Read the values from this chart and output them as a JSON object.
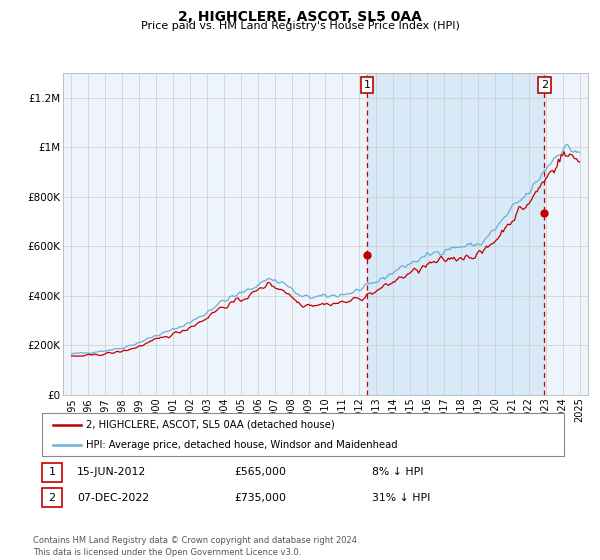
{
  "title": "2, HIGHCLERE, ASCOT, SL5 0AA",
  "subtitle": "Price paid vs. HM Land Registry's House Price Index (HPI)",
  "ylabel_ticks": [
    "£0",
    "£200K",
    "£400K",
    "£600K",
    "£800K",
    "£1M",
    "£1.2M"
  ],
  "ytick_values": [
    0,
    200000,
    400000,
    600000,
    800000,
    1000000,
    1200000
  ],
  "ylim": [
    0,
    1300000
  ],
  "xlim_start": 1994.5,
  "xlim_end": 2025.5,
  "legend_line1": "2, HIGHCLERE, ASCOT, SL5 0AA (detached house)",
  "legend_line2": "HPI: Average price, detached house, Windsor and Maidenhead",
  "sale1_date": "15-JUN-2012",
  "sale1_price": "£565,000",
  "sale1_pct": "8% ↓ HPI",
  "sale1_year": 2012.45,
  "sale1_value": 565000,
  "sale2_date": "07-DEC-2022",
  "sale2_price": "£735,000",
  "sale2_pct": "31% ↓ HPI",
  "sale2_year": 2022.92,
  "sale2_value": 735000,
  "footer": "Contains HM Land Registry data © Crown copyright and database right 2024.\nThis data is licensed under the Open Government Licence v3.0.",
  "hpi_color": "#6baed6",
  "price_color": "#c00000",
  "shade_color": "#d6e8f7",
  "grid_color": "#cccccc",
  "bg_color": "#eef4fb"
}
